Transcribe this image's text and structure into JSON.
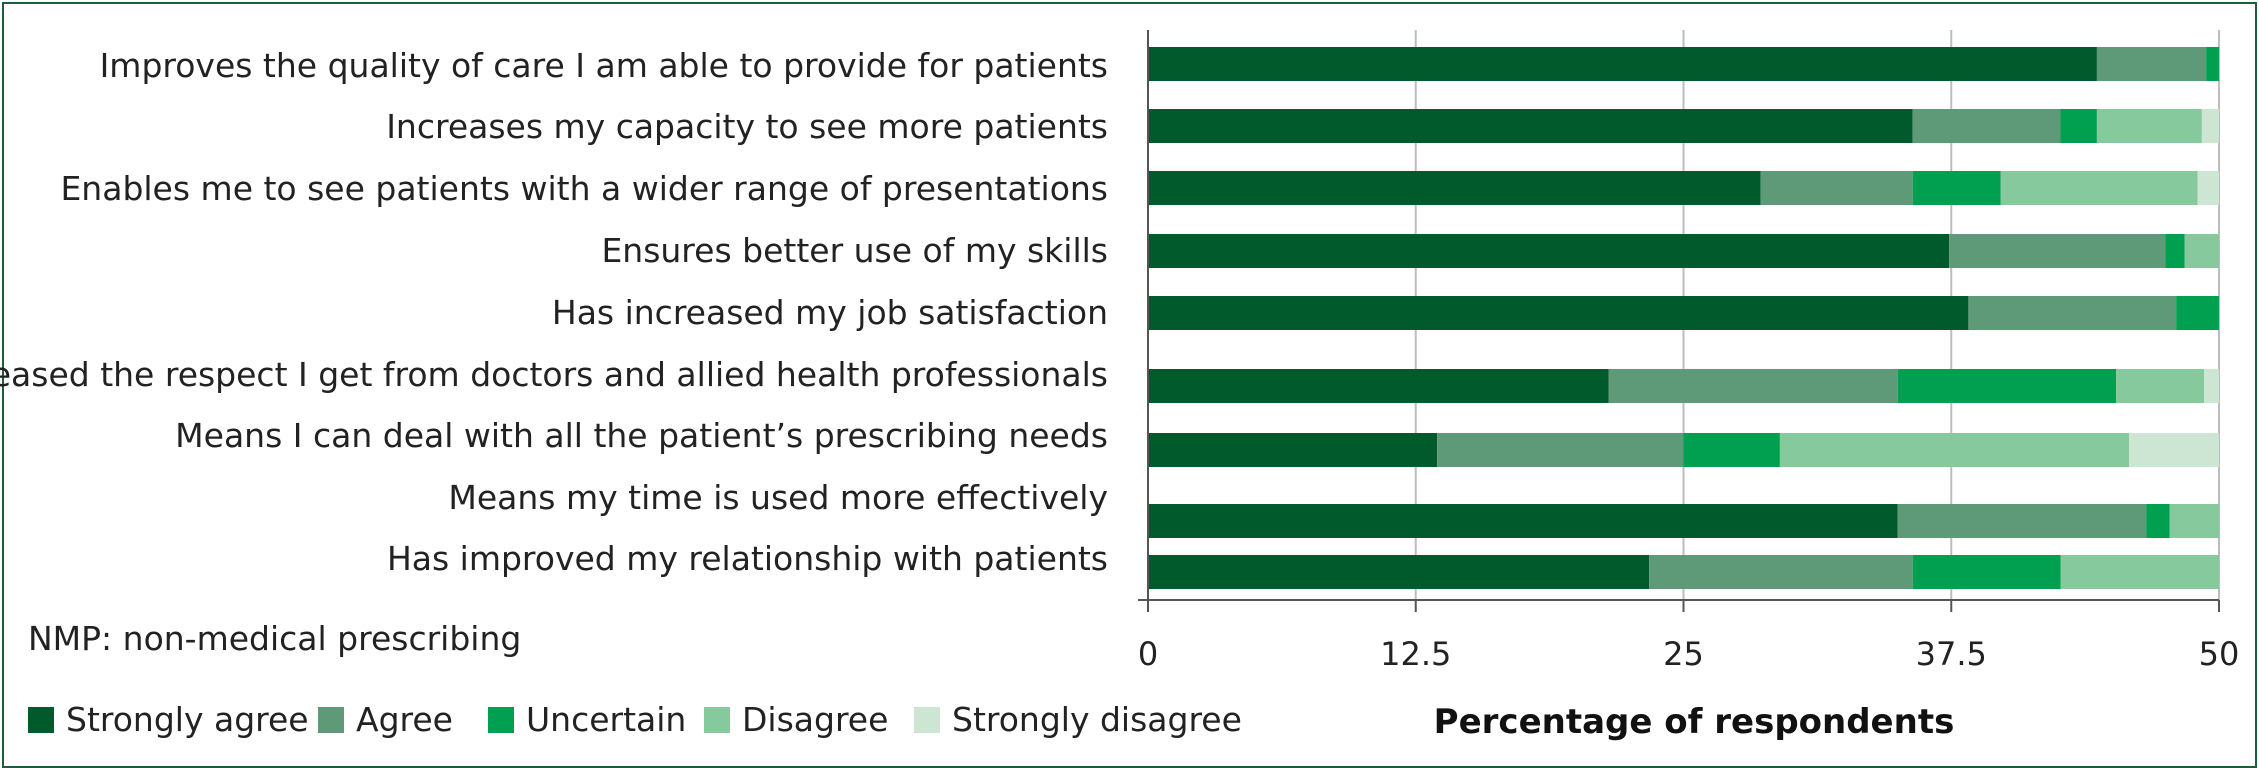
{
  "chart_data": {
    "type": "bar",
    "orientation": "horizontal",
    "stacked": true,
    "categories": [
      "Improves the quality of care I am able to provide for patients",
      "Increases my capacity to see more patients",
      "Enables me to see patients with a wider range of presentations",
      "Ensures better use of my skills",
      "Has increased my job satisfaction",
      "Increased the respect I get from doctors and allied health professionals",
      "Means I can deal with all the patient’s prescribing needs",
      "Means my time is used more effectively",
      "Has improved my relationship with patients"
    ],
    "series": [
      {
        "name": "Strongly agree",
        "color": "#005a2b",
        "values": [
          44.3,
          35.7,
          28.6,
          37.4,
          38.3,
          21.5,
          13.5,
          35.0,
          23.4
        ]
      },
      {
        "name": "Agree",
        "color": "#5f9a78",
        "values": [
          5.1,
          6.9,
          7.1,
          10.1,
          9.7,
          13.5,
          11.5,
          11.6,
          12.3
        ]
      },
      {
        "name": "Uncertain",
        "color": "#00a050",
        "values": [
          0.6,
          1.7,
          4.1,
          0.9,
          2.0,
          10.2,
          4.5,
          1.1,
          6.9
        ]
      },
      {
        "name": "Disagree",
        "color": "#86c99c",
        "values": [
          0.0,
          4.9,
          9.2,
          1.6,
          0.0,
          4.1,
          16.3,
          2.3,
          7.4
        ]
      },
      {
        "name": "Strongly disagree",
        "color": "#cde6d3",
        "values": [
          0.0,
          0.8,
          1.0,
          0.0,
          0.0,
          0.7,
          4.2,
          0.0,
          0.0
        ]
      }
    ],
    "xlabel": "Percentage of respondents",
    "xlim": [
      0,
      50
    ],
    "xticks": [
      "0",
      "12.5",
      "25",
      "37.5",
      "50"
    ],
    "grid": "vertical",
    "legend_position": "bottom-left",
    "note": "NMP: non-medical prescribing"
  }
}
